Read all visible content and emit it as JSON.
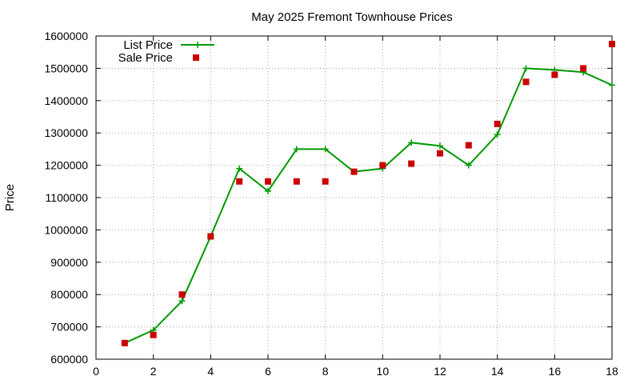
{
  "chart_data": {
    "type": "line",
    "title": "May 2025 Fremont Townhouse Prices",
    "xlabel": "",
    "ylabel": "Price",
    "xlim": [
      0,
      18
    ],
    "ylim": [
      600000,
      1600000
    ],
    "x_ticks": [
      "0",
      "2",
      "4",
      "6",
      "8",
      "10",
      "12",
      "14",
      "16",
      "18"
    ],
    "y_ticks": [
      "600000",
      "700000",
      "800000",
      "900000",
      "1000000",
      "1100000",
      "1200000",
      "1300000",
      "1400000",
      "1500000",
      "1600000"
    ],
    "grid": true,
    "legend_position": "top-left",
    "series": [
      {
        "name": "List Price",
        "style": "line-with-plus-markers",
        "color": "#009900",
        "x": [
          1,
          2,
          3,
          4,
          5,
          6,
          7,
          8,
          9,
          10,
          11,
          12,
          13,
          14,
          15,
          16,
          17,
          18
        ],
        "y": [
          650000,
          690000,
          780000,
          980000,
          1190000,
          1120000,
          1250000,
          1250000,
          1180000,
          1190000,
          1270000,
          1260000,
          1200000,
          1295000,
          1500000,
          1495000,
          1488000,
          1448000
        ]
      },
      {
        "name": "Sale Price",
        "style": "square-markers",
        "color": "#cc0000",
        "x": [
          1,
          2,
          3,
          4,
          5,
          6,
          7,
          8,
          9,
          10,
          11,
          12,
          13,
          14,
          15,
          16,
          17,
          18
        ],
        "y": [
          650000,
          675000,
          800000,
          980000,
          1150000,
          1150000,
          1150000,
          1150000,
          1180000,
          1200000,
          1205000,
          1237000,
          1262000,
          1328000,
          1458000,
          1480000,
          1500000,
          1575000
        ]
      }
    ]
  }
}
